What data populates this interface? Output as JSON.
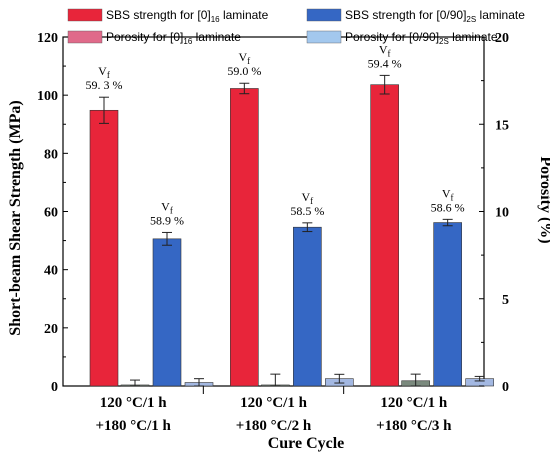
{
  "chart_data": {
    "type": "bar",
    "xlabel": "Cure Cycle",
    "ylabel": "Short-beam Shear Strength (MPa)",
    "y2label": "Porosity (%)",
    "ylim": [
      0,
      120
    ],
    "y2lim": [
      0,
      20
    ],
    "yticks": [
      "0",
      "20",
      "40",
      "60",
      "80",
      "100",
      "120"
    ],
    "y2ticks": [
      "0",
      "5",
      "10",
      "15",
      "20"
    ],
    "categories": [
      {
        "line1": "120 °C/1 h",
        "line2": "+180 °C/1 h"
      },
      {
        "line1": "120 °C/1 h",
        "line2": "+180 °C/2 h"
      },
      {
        "line1": "120 °C/1 h",
        "line2": "+180 °C/3 h"
      }
    ],
    "series": [
      {
        "name": "SBS strength for [0]16 laminate",
        "axis": "left",
        "color": "#e8253a",
        "values": [
          94.8,
          102.3,
          103.6
        ],
        "errors": [
          4.5,
          1.8,
          3.2
        ],
        "annotations": [
          {
            "label": "V",
            "sub": "f",
            "value": "59. 3 %"
          },
          {
            "label": "V",
            "sub": "f",
            "value": "59.0 %"
          },
          {
            "label": "V",
            "sub": "f",
            "value": "59.4 %"
          }
        ]
      },
      {
        "name": "Porosity for [0]16 laminate",
        "axis": "right",
        "color": "#7b8a7e",
        "values": [
          0.06,
          0.06,
          0.3
        ],
        "errors": [
          0.28,
          0.62,
          0.38
        ]
      },
      {
        "name": "SBS strength for [0/90]2S laminate",
        "axis": "left",
        "color": "#3567c4",
        "values": [
          50.6,
          54.6,
          56.2
        ],
        "errors": [
          2.2,
          1.5,
          1.1
        ],
        "annotations": [
          {
            "label": "V",
            "sub": "f",
            "value": "58.9 %"
          },
          {
            "label": "V",
            "sub": "f",
            "value": "58.5 %"
          },
          {
            "label": "V",
            "sub": "f",
            "value": "58.6 %"
          }
        ]
      },
      {
        "name": "Porosity for [0/90]2S laminate",
        "axis": "right",
        "color": "#a3b8e2",
        "values": [
          0.2,
          0.42,
          0.42
        ],
        "errors": [
          0.22,
          0.25,
          0.13
        ]
      }
    ],
    "legend": [
      {
        "prefix": "SBS strength for ",
        "base": "[0]",
        "sub": "16",
        "suffix": " laminate",
        "color": "#e8253a"
      },
      {
        "prefix": "SBS strength for ",
        "base": "[0/90]",
        "sub": "2S",
        "suffix": " laminate",
        "color": "#3567c4"
      },
      {
        "prefix": "Porosity for ",
        "base": "[0]",
        "sub": "16",
        "suffix": " laminate",
        "color": "#e06a8a"
      },
      {
        "prefix": "Porosity for ",
        "base": "[0/90]",
        "sub": "2S",
        "suffix": " laminate",
        "color": "#a3c8ee"
      }
    ],
    "legend_position": "top"
  }
}
